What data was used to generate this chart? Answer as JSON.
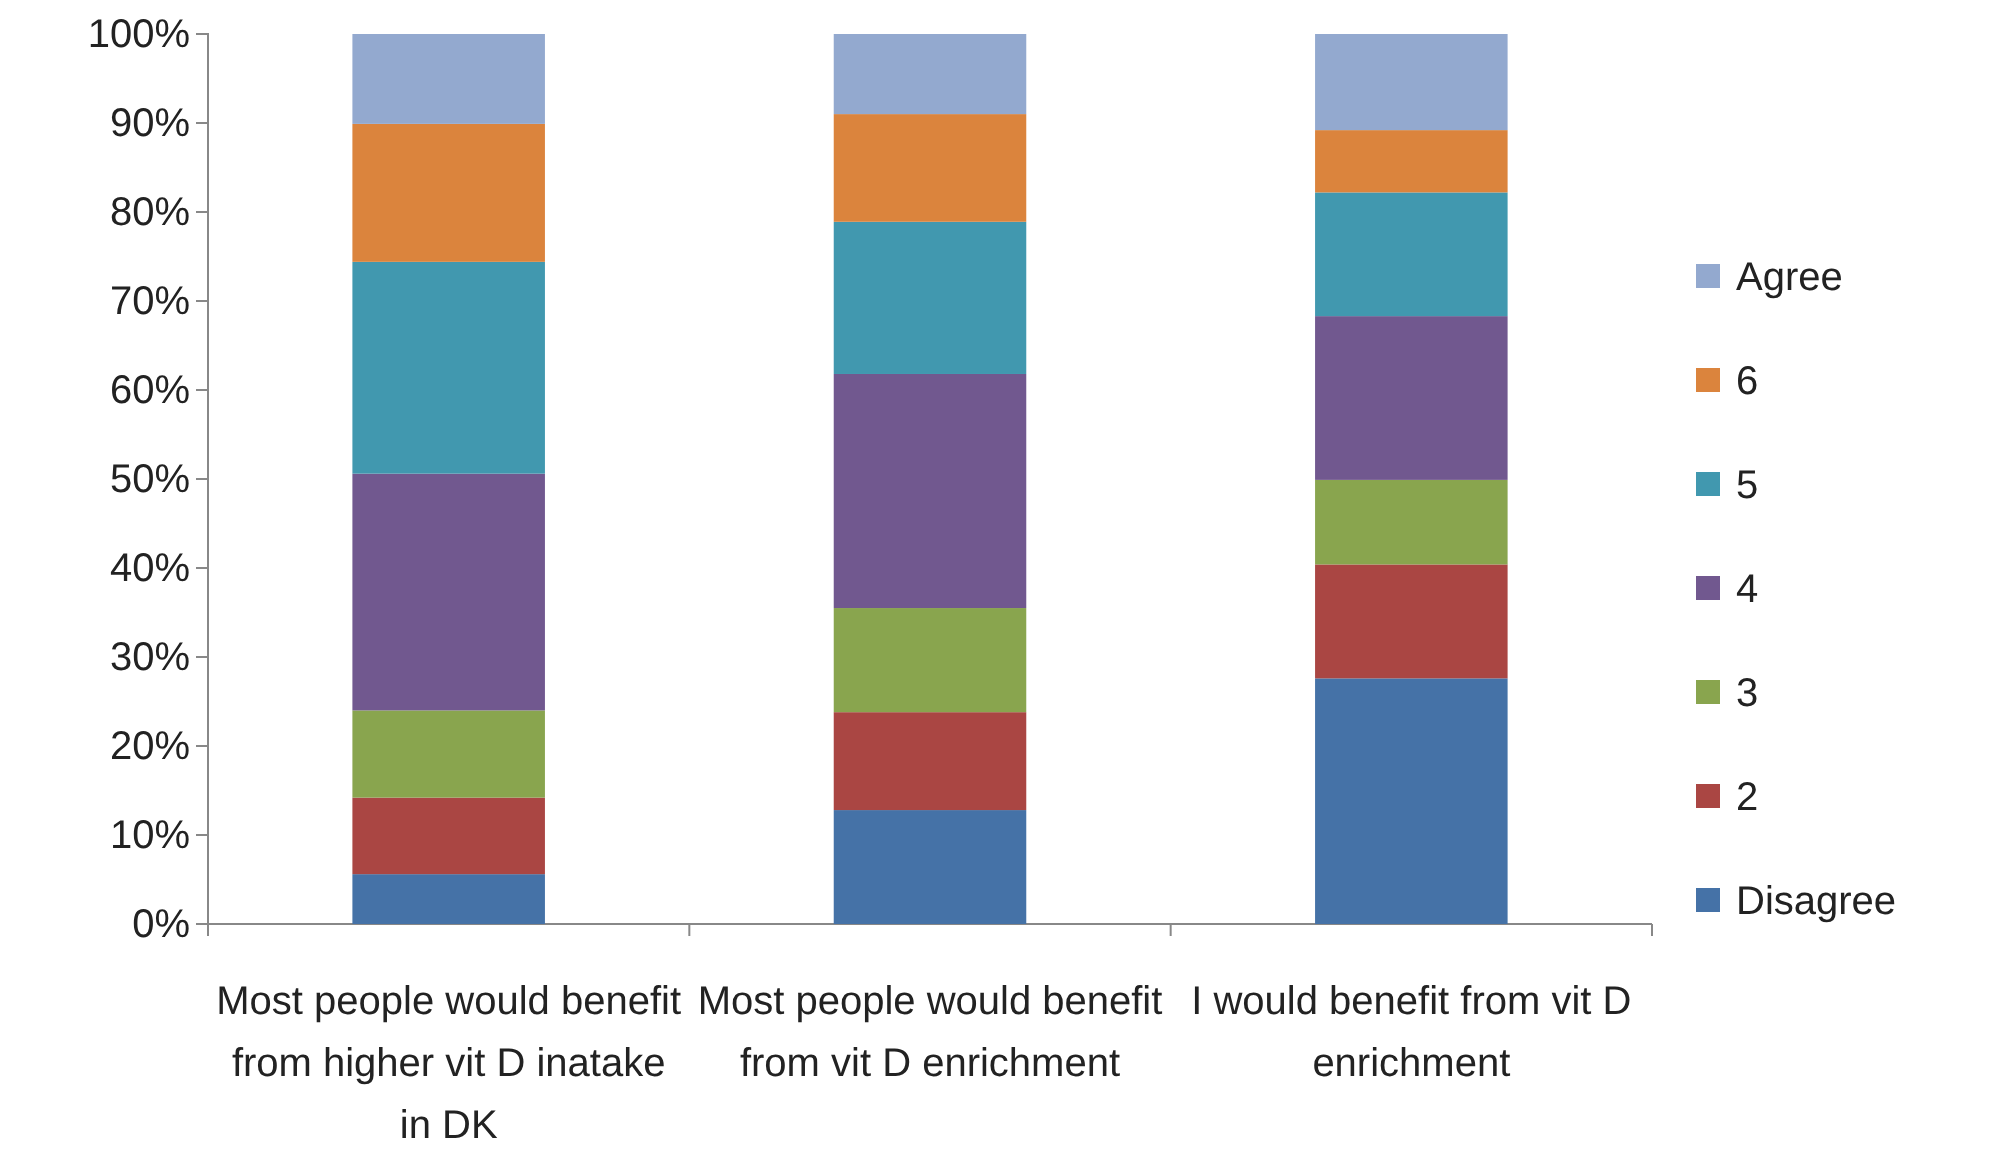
{
  "chart_data": {
    "type": "bar",
    "stacked": true,
    "legend": "right",
    "grid": false,
    "categories": [
      "Most people would benefit from higher vit D inatake in DK",
      "Most people would benefit from vit D enrichment",
      "I would benefit from vit D enrichment"
    ],
    "ylim": [
      0,
      100
    ],
    "yticks": [
      {
        "value": 0,
        "label": "0%"
      },
      {
        "value": 10,
        "label": "10%"
      },
      {
        "value": 20,
        "label": "20%"
      },
      {
        "value": 30,
        "label": "30%"
      },
      {
        "value": 40,
        "label": "40%"
      },
      {
        "value": 50,
        "label": "50%"
      },
      {
        "value": 60,
        "label": "60%"
      },
      {
        "value": 70,
        "label": "70%"
      },
      {
        "value": 80,
        "label": "80%"
      },
      {
        "value": 90,
        "label": "90%"
      },
      {
        "value": 100,
        "label": "100%"
      }
    ],
    "series": [
      {
        "name": "Disagree",
        "color": "#4572a7",
        "values": [
          5.6,
          12.8,
          27.6
        ]
      },
      {
        "name": "2",
        "color": "#aa4643",
        "values": [
          8.6,
          11.0,
          12.8
        ]
      },
      {
        "name": "3",
        "color": "#89a54e",
        "values": [
          9.8,
          11.7,
          9.5
        ]
      },
      {
        "name": "4",
        "color": "#71588f",
        "values": [
          26.6,
          26.3,
          18.4
        ]
      },
      {
        "name": "5",
        "color": "#4198af",
        "values": [
          23.8,
          17.1,
          13.9
        ]
      },
      {
        "name": "6",
        "color": "#db843d",
        "values": [
          15.5,
          12.1,
          7.0
        ]
      },
      {
        "name": "Agree",
        "color": "#93a9cf",
        "values": [
          10.1,
          9.0,
          10.8
        ]
      }
    ]
  }
}
